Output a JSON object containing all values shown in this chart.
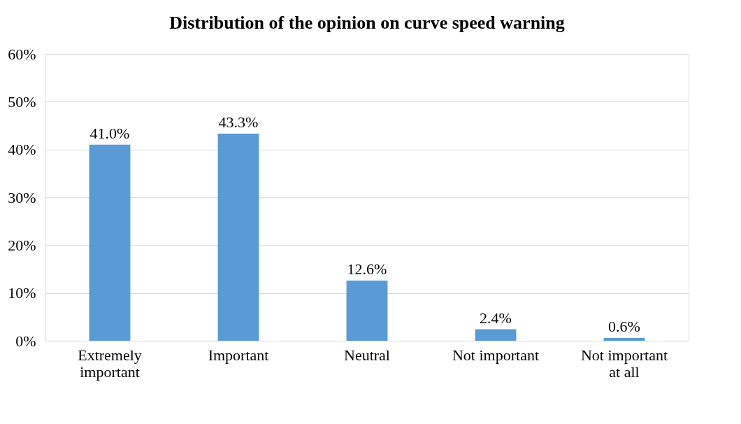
{
  "chart_data": {
    "type": "bar",
    "title": "Distribution of the opinion on curve speed warning",
    "categories": [
      "Extremely important",
      "Important",
      "Neutral",
      "Not important",
      "Not important at all"
    ],
    "values": [
      41.0,
      43.3,
      12.6,
      2.4,
      0.6
    ],
    "value_labels": [
      "41.0%",
      "43.3%",
      "12.6%",
      "2.4%",
      "0.6%"
    ],
    "color": "#5b9bd5",
    "ylim": [
      0,
      60
    ],
    "yticks": [
      {
        "value": 0,
        "label": "0%"
      },
      {
        "value": 10,
        "label": "10%"
      },
      {
        "value": 20,
        "label": "20%"
      },
      {
        "value": 30,
        "label": "30%"
      },
      {
        "value": 40,
        "label": "40%"
      },
      {
        "value": 50,
        "label": "50%"
      },
      {
        "value": 60,
        "label": "60%"
      }
    ],
    "grid": "y"
  }
}
